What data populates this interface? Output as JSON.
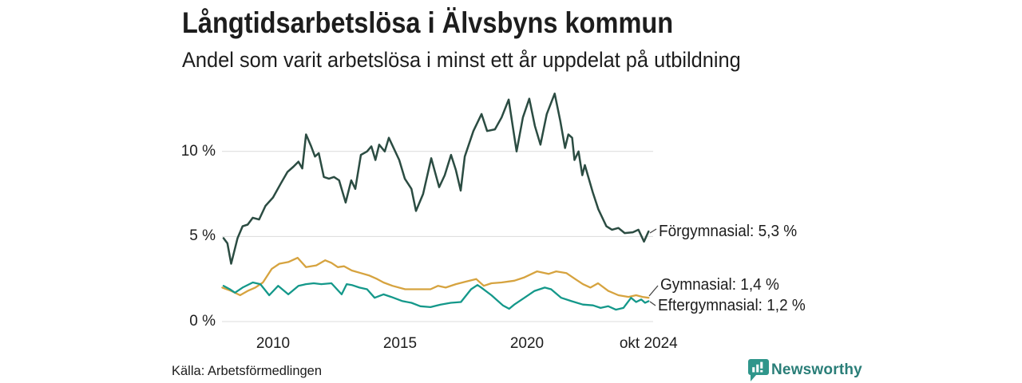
{
  "header": {},
  "footer": {
    "source": "Källa: Arbetsförmedlingen",
    "brand": "Newsworthy"
  },
  "colors": {
    "forgymnasial": "#2b4c42",
    "gymnasial": "#d6a33f",
    "eftergymnasial": "#14988a",
    "grid": "#dcdcdc",
    "text": "#1d1d1d",
    "logo_icon": "#2f968b",
    "logo_text": "#2a7e78"
  },
  "chart_data": {
    "type": "line",
    "title": "Långtidsarbetslösa i Älvsbyns kommun",
    "subtitle": "Andel som varit arbetslösa i minst ett år uppdelat på utbildning",
    "xlabel": "",
    "ylabel": "",
    "grid": "horizontal",
    "legend_position": "right-inline-labels",
    "xlim": [
      2008.0,
      2024.82
    ],
    "ylim": [
      0,
      13.6
    ],
    "x_axis": {
      "ticks": [
        {
          "label": "2010",
          "year": 2010
        },
        {
          "label": "2015",
          "year": 2015
        },
        {
          "label": "2020",
          "year": 2020
        },
        {
          "label": "okt 2024",
          "year": 2024.79
        }
      ]
    },
    "y_axis": {
      "ticks": [
        {
          "label": "0 %",
          "value": 0
        },
        {
          "label": "5 %",
          "value": 5
        },
        {
          "label": "10 %",
          "value": 10
        }
      ]
    },
    "series": [
      {
        "name": "Förgymnasial",
        "label": "Förgymnasial: 5,3 %",
        "last_value": "5,3 %",
        "color": "#2b4c42",
        "width": 2.5,
        "points": [
          [
            2008.05,
            4.9
          ],
          [
            2008.2,
            4.6
          ],
          [
            2008.35,
            3.4
          ],
          [
            2008.6,
            4.9
          ],
          [
            2008.8,
            5.6
          ],
          [
            2009.0,
            5.7
          ],
          [
            2009.2,
            6.1
          ],
          [
            2009.45,
            6.0
          ],
          [
            2009.7,
            6.8
          ],
          [
            2010.0,
            7.3
          ],
          [
            2010.3,
            8.1
          ],
          [
            2010.57,
            8.8
          ],
          [
            2010.8,
            9.1
          ],
          [
            2011.0,
            9.4
          ],
          [
            2011.15,
            9.0
          ],
          [
            2011.3,
            11.0
          ],
          [
            2011.5,
            10.3
          ],
          [
            2011.65,
            9.7
          ],
          [
            2011.8,
            9.9
          ],
          [
            2012.0,
            8.5
          ],
          [
            2012.2,
            8.4
          ],
          [
            2012.4,
            8.5
          ],
          [
            2012.6,
            8.3
          ],
          [
            2012.86,
            7.0
          ],
          [
            2013.08,
            8.3
          ],
          [
            2013.24,
            7.8
          ],
          [
            2013.46,
            9.8
          ],
          [
            2013.7,
            10.0
          ],
          [
            2013.87,
            10.3
          ],
          [
            2014.03,
            9.5
          ],
          [
            2014.18,
            10.4
          ],
          [
            2014.4,
            10.0
          ],
          [
            2014.56,
            10.8
          ],
          [
            2014.97,
            9.5
          ],
          [
            2015.19,
            8.4
          ],
          [
            2015.45,
            7.8
          ],
          [
            2015.63,
            6.5
          ],
          [
            2015.91,
            7.5
          ],
          [
            2016.23,
            9.6
          ],
          [
            2016.54,
            7.9
          ],
          [
            2016.76,
            8.6
          ],
          [
            2017.01,
            9.8
          ],
          [
            2017.2,
            8.9
          ],
          [
            2017.39,
            7.7
          ],
          [
            2017.55,
            9.7
          ],
          [
            2017.89,
            11.2
          ],
          [
            2018.21,
            12.2
          ],
          [
            2018.43,
            11.2
          ],
          [
            2018.74,
            11.3
          ],
          [
            2019.0,
            12.0
          ],
          [
            2019.28,
            13.05
          ],
          [
            2019.59,
            10.0
          ],
          [
            2019.84,
            12.0
          ],
          [
            2020.09,
            13.1
          ],
          [
            2020.31,
            11.5
          ],
          [
            2020.53,
            10.4
          ],
          [
            2020.78,
            12.2
          ],
          [
            2021.09,
            13.4
          ],
          [
            2021.31,
            11.8
          ],
          [
            2021.5,
            10.2
          ],
          [
            2021.63,
            11.0
          ],
          [
            2021.78,
            10.8
          ],
          [
            2021.87,
            9.5
          ],
          [
            2022.03,
            10.0
          ],
          [
            2022.18,
            8.6
          ],
          [
            2022.28,
            9.2
          ],
          [
            2022.59,
            7.6
          ],
          [
            2022.81,
            6.6
          ],
          [
            2023.13,
            5.6
          ],
          [
            2023.35,
            5.4
          ],
          [
            2023.6,
            5.5
          ],
          [
            2023.85,
            5.2
          ],
          [
            2024.17,
            5.25
          ],
          [
            2024.39,
            5.4
          ],
          [
            2024.61,
            4.7
          ],
          [
            2024.79,
            5.3
          ]
        ]
      },
      {
        "name": "Gymnasial",
        "label": "Gymnasial: 1,4 %",
        "last_value": "1,4 %",
        "color": "#d6a33f",
        "width": 2.3,
        "points": [
          [
            2008.0,
            2.0
          ],
          [
            2008.35,
            1.8
          ],
          [
            2008.7,
            1.55
          ],
          [
            2009.0,
            1.8
          ],
          [
            2009.3,
            2.0
          ],
          [
            2009.6,
            2.3
          ],
          [
            2009.95,
            3.1
          ],
          [
            2010.25,
            3.4
          ],
          [
            2010.6,
            3.5
          ],
          [
            2010.97,
            3.75
          ],
          [
            2011.3,
            3.2
          ],
          [
            2011.7,
            3.3
          ],
          [
            2012.05,
            3.6
          ],
          [
            2012.3,
            3.45
          ],
          [
            2012.55,
            3.2
          ],
          [
            2012.8,
            3.25
          ],
          [
            2013.1,
            3.0
          ],
          [
            2013.45,
            2.85
          ],
          [
            2013.8,
            2.7
          ],
          [
            2014.1,
            2.5
          ],
          [
            2014.35,
            2.3
          ],
          [
            2014.7,
            2.1
          ],
          [
            2015.2,
            1.9
          ],
          [
            2015.65,
            1.9
          ],
          [
            2016.2,
            1.9
          ],
          [
            2016.5,
            2.1
          ],
          [
            2016.8,
            2.0
          ],
          [
            2017.2,
            2.2
          ],
          [
            2017.6,
            2.35
          ],
          [
            2018.0,
            2.5
          ],
          [
            2018.3,
            2.1
          ],
          [
            2018.6,
            2.25
          ],
          [
            2019.0,
            2.3
          ],
          [
            2019.5,
            2.4
          ],
          [
            2019.9,
            2.6
          ],
          [
            2020.4,
            2.95
          ],
          [
            2020.85,
            2.8
          ],
          [
            2021.15,
            2.95
          ],
          [
            2021.55,
            2.85
          ],
          [
            2021.9,
            2.5
          ],
          [
            2022.2,
            2.2
          ],
          [
            2022.5,
            2.0
          ],
          [
            2022.8,
            2.25
          ],
          [
            2023.2,
            1.8
          ],
          [
            2023.6,
            1.55
          ],
          [
            2024.0,
            1.45
          ],
          [
            2024.3,
            1.55
          ],
          [
            2024.55,
            1.45
          ],
          [
            2024.79,
            1.4
          ]
        ]
      },
      {
        "name": "Eftergymnasial",
        "label": "Eftergymnasial: 1,2 %",
        "last_value": "1,2 %",
        "color": "#14988a",
        "width": 2.3,
        "points": [
          [
            2008.05,
            2.1
          ],
          [
            2008.3,
            1.9
          ],
          [
            2008.5,
            1.7
          ],
          [
            2008.8,
            2.0
          ],
          [
            2009.2,
            2.3
          ],
          [
            2009.5,
            2.2
          ],
          [
            2009.85,
            1.55
          ],
          [
            2010.2,
            2.1
          ],
          [
            2010.6,
            1.6
          ],
          [
            2011.0,
            2.1
          ],
          [
            2011.3,
            2.2
          ],
          [
            2011.6,
            2.25
          ],
          [
            2011.9,
            2.2
          ],
          [
            2012.3,
            2.25
          ],
          [
            2012.7,
            1.6
          ],
          [
            2012.9,
            2.2
          ],
          [
            2013.1,
            2.15
          ],
          [
            2013.4,
            2.0
          ],
          [
            2013.7,
            1.9
          ],
          [
            2014.0,
            1.4
          ],
          [
            2014.35,
            1.6
          ],
          [
            2014.65,
            1.45
          ],
          [
            2015.1,
            1.2
          ],
          [
            2015.45,
            1.1
          ],
          [
            2015.8,
            0.9
          ],
          [
            2016.2,
            0.85
          ],
          [
            2016.6,
            1.0
          ],
          [
            2017.0,
            1.1
          ],
          [
            2017.4,
            1.15
          ],
          [
            2017.8,
            1.9
          ],
          [
            2018.05,
            2.15
          ],
          [
            2018.2,
            2.0
          ],
          [
            2018.6,
            1.55
          ],
          [
            2019.05,
            0.95
          ],
          [
            2019.3,
            0.75
          ],
          [
            2019.5,
            1.0
          ],
          [
            2019.9,
            1.4
          ],
          [
            2020.3,
            1.8
          ],
          [
            2020.7,
            2.0
          ],
          [
            2020.95,
            1.9
          ],
          [
            2021.35,
            1.4
          ],
          [
            2021.75,
            1.2
          ],
          [
            2022.2,
            1.0
          ],
          [
            2022.6,
            0.95
          ],
          [
            2022.9,
            0.8
          ],
          [
            2023.2,
            0.9
          ],
          [
            2023.5,
            0.7
          ],
          [
            2023.8,
            0.8
          ],
          [
            2024.1,
            1.4
          ],
          [
            2024.3,
            1.15
          ],
          [
            2024.5,
            1.3
          ],
          [
            2024.65,
            1.1
          ],
          [
            2024.79,
            1.2
          ]
        ]
      }
    ]
  }
}
